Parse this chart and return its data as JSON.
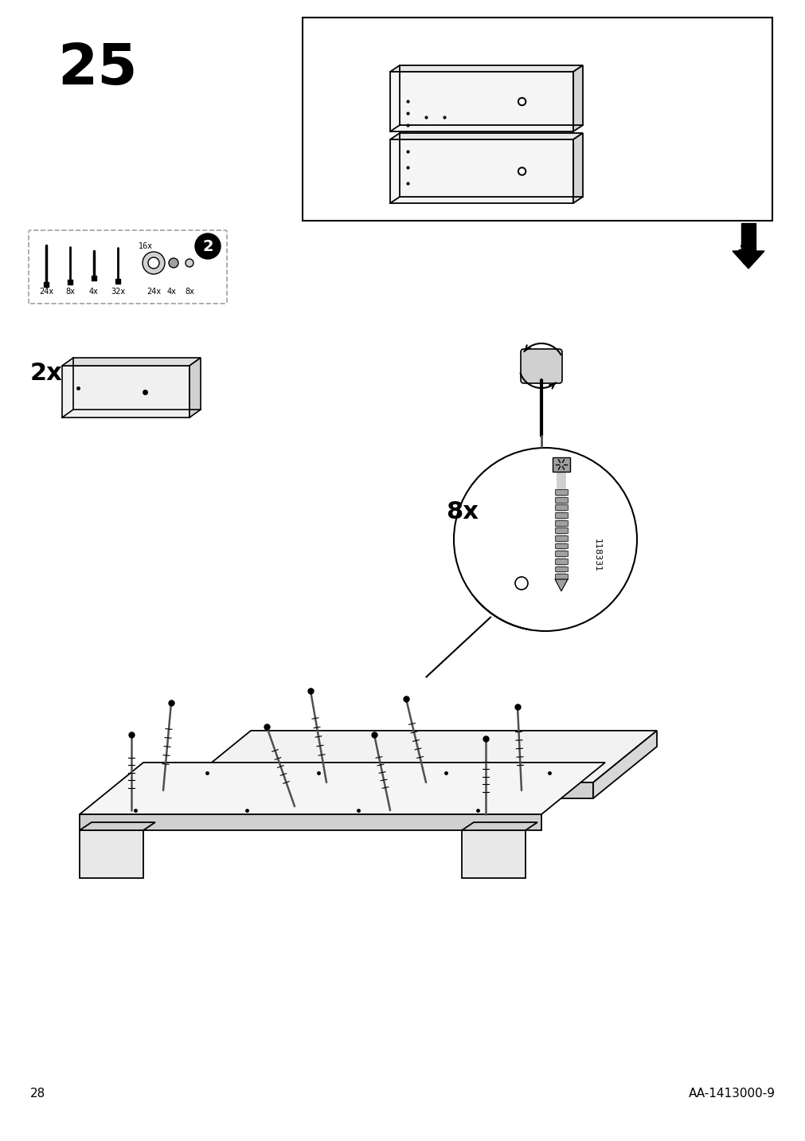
{
  "page_number": "28",
  "step_number": "25",
  "product_code": "AA-1413000-9",
  "background_color": "#ffffff",
  "line_color": "#000000",
  "light_gray": "#d0d0d0",
  "mid_gray": "#a0a0a0",
  "dark_gray": "#505050",
  "quantity_2x_label": "2x",
  "quantity_8x_label": "8x",
  "part_number": "118331"
}
